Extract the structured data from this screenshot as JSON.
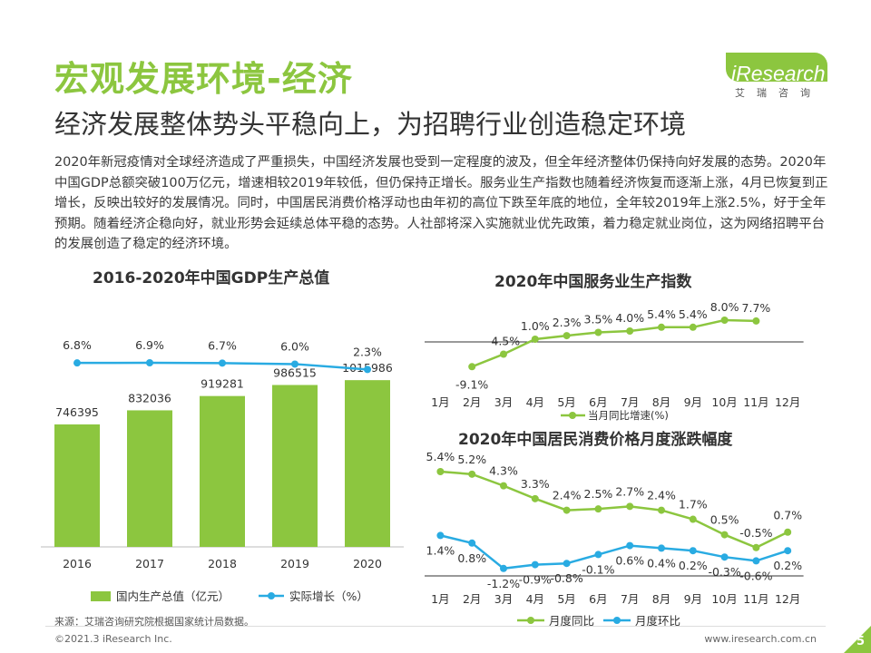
{
  "header": {
    "title": "宏观发展环境-经济",
    "subtitle": "经济发展整体势头平稳向上，为招聘行业创造稳定环境",
    "logo_text": "iResearch",
    "logo_sub": "艾瑞咨询"
  },
  "body_text": "2020年新冠疫情对全球经济造成了严重损失，中国经济发展也受到一定程度的波及，但全年经济整体仍保持向好发展的态势。2020年中国GDP总额突破100万亿元，增速相较2019年较低，但仍保持正增长。服务业生产指数也随着经济恢复而逐渐上涨，4月已恢复到正增长，反映出较好的发展情况。同时，中国居民消费价格浮动也由年初的高位下跌至年底的地位，全年较2019年上涨2.5%，好于全年预期。随着经济企稳向好，就业形势会延续总体平稳的态势。人社部将深入实施就业优先政策，着力稳定就业岗位，这为网络招聘平台的发展创造了稳定的经济环境。",
  "colors": {
    "green": "#8cc63f",
    "blue": "#29abe2",
    "axis": "#333333"
  },
  "chart_data": [
    {
      "type": "bar",
      "title": "2016-2020年中国GDP生产总值",
      "categories": [
        "2016",
        "2017",
        "2018",
        "2019",
        "2020"
      ],
      "series": [
        {
          "name": "国内生产总值（亿元）",
          "kind": "bar",
          "values": [
            746395,
            832036,
            919281,
            986515,
            1015986
          ],
          "labels": [
            "746395",
            "832036",
            "919281",
            "986515",
            "1015986"
          ]
        },
        {
          "name": "实际增长（%）",
          "kind": "line",
          "values": [
            6.8,
            6.9,
            6.7,
            6.0,
            2.3
          ],
          "labels": [
            "6.8%",
            "6.9%",
            "6.7%",
            "6.0%",
            "2.3%"
          ]
        }
      ]
    },
    {
      "type": "line",
      "title": "2020年中国服务业生产指数",
      "categories": [
        "1月",
        "2月",
        "3月",
        "4月",
        "5月",
        "6月",
        "7月",
        "8月",
        "9月",
        "10月",
        "11月",
        "12月"
      ],
      "series": [
        {
          "name": "当月同比增速(%)",
          "values": [
            null,
            -9.1,
            -4.5,
            1.0,
            2.3,
            3.5,
            4.0,
            5.4,
            5.4,
            8.0,
            7.7,
            null
          ],
          "labels": [
            "",
            "-9.1%",
            "-4.5%",
            "1.0%",
            "2.3%",
            "3.5%",
            "4.0%",
            "5.4%",
            "5.4%",
            "8.0%",
            "7.7%",
            ""
          ]
        }
      ]
    },
    {
      "type": "line",
      "title": "2020年中国居民消费价格月度涨跌幅度",
      "categories": [
        "1月",
        "2月",
        "3月",
        "4月",
        "5月",
        "6月",
        "7月",
        "8月",
        "9月",
        "10月",
        "11月",
        "12月"
      ],
      "series": [
        {
          "name": "月度同比",
          "values": [
            5.4,
            5.2,
            4.3,
            3.3,
            2.4,
            2.5,
            2.7,
            2.4,
            1.7,
            0.5,
            -0.5,
            0.7
          ],
          "labels": [
            "5.4%",
            "5.2%",
            "4.3%",
            "3.3%",
            "2.4%",
            "2.5%",
            "2.7%",
            "2.4%",
            "1.7%",
            "0.5%",
            "-0.5%",
            "0.7%"
          ]
        },
        {
          "name": "月度环比",
          "values": [
            1.4,
            0.8,
            -1.2,
            -0.9,
            -0.8,
            -0.1,
            0.6,
            0.4,
            0.2,
            -0.3,
            -0.6,
            0.2
          ],
          "labels": [
            "1.4%",
            "0.8%",
            "-1.2%",
            "-0.9%",
            "-0.8%",
            "-0.1%",
            "0.6%",
            "0.4%",
            "0.2%",
            "-0.3%",
            "-0.6%",
            "0.2%"
          ]
        }
      ]
    }
  ],
  "source": "来源：艾瑞咨询研究院根据国家统计局数据。",
  "footer": {
    "copyright": "©2021.3 iResearch Inc.",
    "url": "www.iresearch.com.cn",
    "page": "5"
  }
}
